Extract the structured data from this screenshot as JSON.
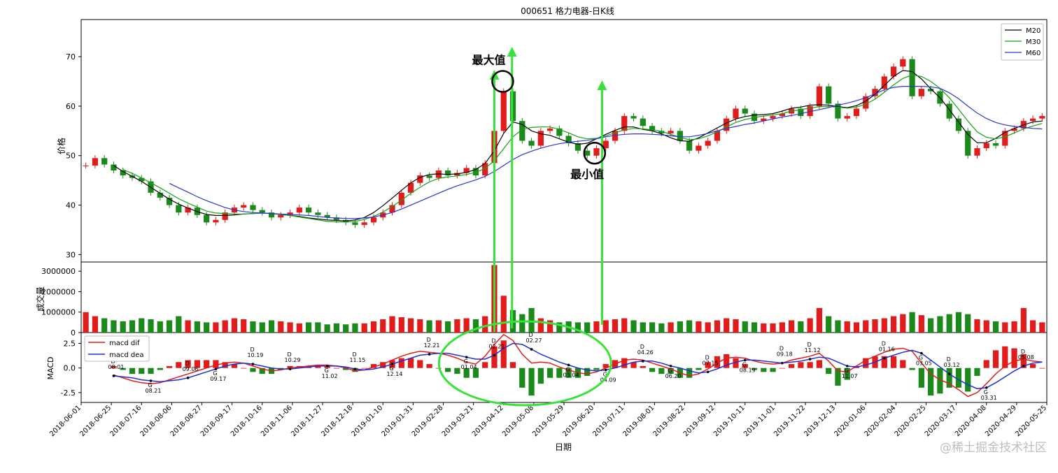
{
  "chart_data": {
    "title": "000651 格力电器-日K线",
    "xlabel": "日期",
    "watermark": "@稀土掘金技术社区",
    "x_ticks": [
      "2018-06-01",
      "2018-06-25",
      "2018-07-16",
      "2018-08-06",
      "2018-08-27",
      "2018-09-17",
      "2018-10-16",
      "2018-11-06",
      "2018-11-27",
      "2018-12-18",
      "2019-01-10",
      "2019-01-31",
      "2019-02-28",
      "2019-03-21",
      "2019-04-12",
      "2019-05-08",
      "2019-05-29",
      "2019-06-20",
      "2019-07-11",
      "2019-08-01",
      "2019-08-22",
      "2019-09-12",
      "2019-10-11",
      "2019-11-01",
      "2019-11-22",
      "2019-12-13",
      "2020-01-06",
      "2020-02-04",
      "2020-02-25",
      "2020-03-17",
      "2020-04-08",
      "2020-04-29",
      "2020-05-25"
    ],
    "panels": [
      {
        "type": "candlestick",
        "ylabel": "价格",
        "ylim": [
          28.5,
          77.5
        ],
        "yticks": [
          30,
          40,
          50,
          60,
          70
        ],
        "up_color": "#e21b1b",
        "down_color": "#1b8a1b",
        "candles": [
          48.0,
          49.5,
          48.2,
          47.0,
          46.0,
          45.5,
          44.8,
          42.5,
          41.5,
          40.0,
          38.5,
          39.5,
          38.0,
          36.5,
          37.0,
          38.5,
          39.5,
          40.0,
          39.0,
          38.5,
          37.5,
          38.0,
          38.5,
          39.5,
          38.5,
          38.0,
          37.5,
          37.0,
          36.5,
          36.0,
          36.5,
          37.5,
          38.5,
          40.0,
          42.5,
          44.5,
          46.0,
          45.5,
          47.0,
          46.0,
          46.5,
          47.5,
          46.0,
          48.5,
          55.0,
          63.0,
          57.0,
          53.0,
          52.0,
          55.0,
          55.5,
          54.0,
          52.5,
          51.0,
          50.0,
          51.5,
          53.0,
          55.0,
          58.0,
          57.5,
          56.0,
          55.0,
          54.5,
          55.0,
          53.0,
          51.0,
          52.0,
          53.0,
          55.0,
          57.5,
          59.5,
          58.5,
          57.0,
          57.5,
          58.0,
          58.5,
          59.5,
          58.0,
          60.0,
          64.0,
          60.5,
          57.5,
          58.0,
          59.5,
          62.0,
          63.5,
          66.0,
          68.0,
          69.5,
          62.0,
          63.5,
          63.0,
          60.5,
          57.5,
          55.0,
          50.0,
          51.5,
          52.5,
          52.0,
          55.0,
          55.5,
          57.0,
          57.5,
          58.0
        ],
        "ma_series": [
          {
            "name": "M20",
            "color": "#000000",
            "values": [
              null,
              null,
              null,
              48.0,
              46.8,
              45.8,
              44.8,
              43.6,
              42.4,
              41.2,
              40.2,
              39.4,
              38.7,
              38.1,
              37.9,
              37.9,
              38.0,
              38.2,
              38.3,
              38.4,
              38.3,
              38.1,
              37.9,
              37.7,
              37.4,
              37.2,
              37.0,
              36.9,
              36.8,
              37.0,
              37.5,
              38.5,
              39.9,
              41.4,
              43.0,
              44.5,
              45.6,
              46.2,
              46.3,
              46.2,
              46.3,
              46.6,
              47.2,
              48.4,
              51.0,
              54.5,
              56.8,
              56.3,
              55.0,
              54.4,
              54.1,
              53.4,
              52.7,
              52.3,
              52.5,
              53.4,
              54.3,
              55.1,
              55.8,
              55.8,
              55.3,
              55.0,
              54.4,
              53.6,
              53.0,
              52.9,
              53.6,
              54.6,
              55.6,
              56.6,
              57.4,
              57.9,
              58.2,
              58.3,
              58.5,
              59.0,
              59.6,
              59.8,
              60.2,
              60.3,
              60.2,
              59.9,
              59.7,
              60.1,
              61.0,
              62.4,
              64.2,
              66.0,
              67.2,
              67.0,
              65.5,
              63.5,
              61.7,
              59.3,
              56.8,
              54.3,
              52.6,
              52.6,
              53.5,
              54.7,
              55.5,
              56.2,
              56.8,
              57.0
            ]
          },
          {
            "name": "M30",
            "color": "#13a313",
            "values": [
              null,
              null,
              null,
              null,
              47.2,
              46.4,
              45.5,
              44.5,
              43.5,
              42.4,
              41.3,
              40.4,
              39.6,
              38.8,
              38.4,
              38.3,
              38.2,
              38.2,
              38.3,
              38.4,
              38.3,
              38.1,
              37.9,
              37.6,
              37.3,
              37.0,
              36.7,
              36.6,
              36.6,
              36.7,
              37.1,
              37.7,
              38.6,
              39.7,
              41.0,
              42.4,
              43.6,
              44.7,
              45.4,
              45.7,
              45.9,
              46.2,
              46.6,
              47.4,
              49.0,
              51.4,
              53.8,
              55.3,
              55.7,
              55.8,
              55.8,
              55.3,
              54.6,
              53.8,
              53.4,
              53.5,
              54.0,
              54.6,
              55.2,
              55.5,
              55.4,
              55.2,
              54.9,
              54.3,
              53.7,
              53.2,
              53.4,
              54.0,
              54.8,
              55.8,
              56.7,
              57.3,
              57.7,
              58.0,
              58.2,
              58.5,
              59.0,
              59.3,
              59.6,
              59.9,
              59.9,
              59.8,
              59.6,
              59.8,
              60.4,
              61.4,
              62.8,
              64.3,
              65.6,
              66.3,
              66.0,
              65.0,
              63.6,
              61.7,
              59.4,
              57.0,
              54.8,
              53.7,
              53.4,
              53.8,
              54.6,
              55.4,
              56.0,
              56.5
            ]
          },
          {
            "name": "M60",
            "color": "#2a35d6",
            "values": [
              null,
              null,
              null,
              null,
              null,
              null,
              null,
              null,
              null,
              44.4,
              43.5,
              42.6,
              41.7,
              40.9,
              40.2,
              39.5,
              39.0,
              38.7,
              38.5,
              38.4,
              38.3,
              38.2,
              38.1,
              38.0,
              37.9,
              37.7,
              37.5,
              37.4,
              37.3,
              37.3,
              37.4,
              37.6,
              38.0,
              38.5,
              39.2,
              40.0,
              40.8,
              41.6,
              42.4,
              43.2,
              43.9,
              44.5,
              45.1,
              45.8,
              46.8,
              48.0,
              49.2,
              50.2,
              50.9,
              51.5,
              52.0,
              52.4,
              52.7,
              52.9,
              53.1,
              53.4,
              53.8,
              54.1,
              54.3,
              54.4,
              54.4,
              54.3,
              54.2,
              54.0,
              53.8,
              53.8,
              54.1,
              54.5,
              55.0,
              55.5,
              55.9,
              56.3,
              56.6,
              57.0,
              57.4,
              57.8,
              58.1,
              58.5,
              58.9,
              59.3,
              59.7,
              60.2,
              60.6,
              61.1,
              61.7,
              62.5,
              63.3,
              63.8,
              64.0,
              64.0,
              64.0,
              63.9,
              63.6,
              62.7,
              61.5,
              60.0,
              58.6,
              57.5,
              56.7,
              56.2,
              55.9,
              55.7,
              55.5,
              55.4
            ]
          }
        ]
      },
      {
        "type": "bar",
        "ylabel": "成交量",
        "ylim": [
          0,
          3450000
        ],
        "yticks": [
          0,
          1000000,
          2000000,
          3000000
        ],
        "values": [
          1000000,
          800000,
          700000,
          600000,
          550000,
          600000,
          700000,
          650000,
          550000,
          600000,
          800000,
          600000,
          550000,
          500000,
          500000,
          600000,
          700000,
          650000,
          550000,
          500000,
          600000,
          550000,
          500000,
          450000,
          500000,
          500000,
          400000,
          450000,
          400000,
          450000,
          450000,
          550000,
          650000,
          800000,
          750000,
          700000,
          650000,
          600000,
          600000,
          550000,
          650000,
          700000,
          650000,
          800000,
          3300000,
          1800000,
          1100000,
          900000,
          1200000,
          700000,
          600000,
          500000,
          550000,
          500000,
          500000,
          550000,
          600000,
          650000,
          700000,
          600000,
          500000,
          500000,
          450000,
          500000,
          550000,
          600000,
          550000,
          500000,
          600000,
          700000,
          650000,
          550000,
          500000,
          450000,
          450000,
          500000,
          600000,
          550000,
          700000,
          1200000,
          800000,
          600000,
          550000,
          500000,
          600000,
          650000,
          700000,
          800000,
          900000,
          1000000,
          850000,
          700000,
          800000,
          900000,
          1000000,
          900000,
          650000,
          600000,
          550000,
          500000,
          550000,
          1200000,
          600000,
          500000
        ]
      },
      {
        "type": "macd",
        "ylabel": "MACD",
        "ylim": [
          -3.5,
          3.6
        ],
        "yticks": [
          -2.5,
          0.0,
          2.5
        ],
        "series": [
          {
            "name": "macd dif",
            "color": "#e21b1b",
            "values": [
              null,
              null,
              null,
              -0.7,
              -1.0,
              -1.3,
              -1.5,
              -1.6,
              -1.5,
              -1.2,
              -0.9,
              -0.6,
              -0.3,
              0.0,
              0.3,
              0.5,
              0.6,
              0.5,
              0.2,
              -0.1,
              -0.3,
              -0.2,
              0.0,
              0.1,
              0.2,
              0.3,
              0.3,
              0.2,
              0.0,
              -0.3,
              -0.2,
              0.1,
              0.4,
              0.8,
              1.2,
              1.5,
              1.7,
              1.6,
              1.5,
              1.3,
              1.0,
              0.6,
              0.4,
              1.2,
              2.4,
              3.4,
              2.8,
              1.4,
              0.5,
              0.6,
              0.5,
              0.1,
              -0.2,
              -0.5,
              -0.6,
              -0.4,
              0.0,
              0.4,
              0.8,
              0.9,
              0.8,
              0.5,
              0.2,
              -0.1,
              -0.5,
              -0.8,
              -0.6,
              -0.1,
              0.5,
              1.0,
              1.1,
              1.0,
              0.7,
              0.5,
              0.4,
              0.5,
              0.8,
              1.0,
              1.2,
              1.5,
              0.7,
              -0.3,
              -0.4,
              0.2,
              0.8,
              1.2,
              1.6,
              1.9,
              2.0,
              1.7,
              0.5,
              -0.6,
              -1.2,
              -1.6,
              -2.2,
              -2.9,
              -2.5,
              -1.6,
              -0.6,
              0.2,
              0.7,
              0.9,
              0.7,
              0.6
            ]
          },
          {
            "name": "macd dea",
            "color": "#1f2fd6",
            "values": [
              null,
              null,
              null,
              -0.8,
              -0.9,
              -1.0,
              -1.2,
              -1.3,
              -1.4,
              -1.3,
              -1.2,
              -1.0,
              -0.7,
              -0.4,
              -0.1,
              0.2,
              0.4,
              0.5,
              0.4,
              0.2,
              0.0,
              -0.1,
              -0.1,
              0.0,
              0.1,
              0.2,
              0.2,
              0.2,
              0.1,
              -0.1,
              -0.2,
              -0.1,
              0.1,
              0.4,
              0.7,
              1.0,
              1.3,
              1.4,
              1.5,
              1.5,
              1.3,
              1.1,
              0.9,
              0.9,
              1.3,
              2.0,
              2.5,
              2.4,
              1.9,
              1.4,
              1.0,
              0.6,
              0.3,
              0.0,
              -0.2,
              -0.3,
              -0.2,
              0.0,
              0.3,
              0.6,
              0.7,
              0.7,
              0.5,
              0.2,
              0.0,
              -0.3,
              -0.5,
              -0.4,
              -0.1,
              0.3,
              0.6,
              0.8,
              0.8,
              0.7,
              0.6,
              0.5,
              0.6,
              0.7,
              0.9,
              1.1,
              1.0,
              0.6,
              0.2,
              0.1,
              0.3,
              0.6,
              1.0,
              1.3,
              1.6,
              1.8,
              1.5,
              0.8,
              0.1,
              -0.6,
              -1.2,
              -1.7,
              -2.1,
              -2.0,
              -1.5,
              -0.9,
              -0.3,
              0.2,
              0.5,
              0.6
            ]
          }
        ],
        "histogram_up_color": "#e21b1b",
        "histogram_down_color": "#1b8a1b"
      }
    ],
    "cross_labels": [
      {
        "kind": "D",
        "date": "08.01"
      },
      {
        "kind": "G",
        "date": "08.21"
      },
      {
        "kind": "D",
        "date": "09.06"
      },
      {
        "kind": "G",
        "date": "09.17"
      },
      {
        "kind": "D",
        "date": "10.19"
      },
      {
        "kind": "D",
        "date": "10.29"
      },
      {
        "kind": "G",
        "date": "11.02"
      },
      {
        "kind": "D",
        "date": "11.15"
      },
      {
        "kind": "G",
        "date": "12.14"
      },
      {
        "kind": "D",
        "date": "12.21"
      },
      {
        "kind": "G",
        "date": "01.04"
      },
      {
        "kind": "D",
        "date": "02.21"
      },
      {
        "kind": "D",
        "date": "02.27"
      },
      {
        "kind": "G",
        "date": "03.04"
      },
      {
        "kind": "G",
        "date": "04.09"
      },
      {
        "kind": "D",
        "date": "04.26"
      },
      {
        "kind": "G",
        "date": "06.20"
      },
      {
        "kind": "D",
        "date": "07.15"
      },
      {
        "kind": "G",
        "date": "08.19"
      },
      {
        "kind": "D",
        "date": "09.18"
      },
      {
        "kind": "D",
        "date": "11.12"
      },
      {
        "kind": "G",
        "date": "11.07"
      },
      {
        "kind": "D",
        "date": "01.16"
      },
      {
        "kind": "G",
        "date": "03.05"
      },
      {
        "kind": "D",
        "date": "03.12"
      },
      {
        "kind": "G",
        "date": "03.31"
      },
      {
        "kind": "D",
        "date": "05.08"
      }
    ],
    "annotations": {
      "max_label": "最大值",
      "min_label": "最小值",
      "arrow_color": "#39e23a",
      "max_x_index": 45,
      "max_value": 65.0,
      "min_x_index": 55,
      "min_value": 50.5
    }
  }
}
